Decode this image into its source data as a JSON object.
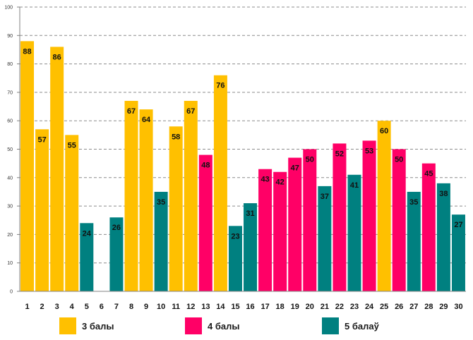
{
  "chart_data": {
    "type": "bar",
    "title": "",
    "xlabel": "",
    "ylabel": "",
    "ylim": [
      0,
      100
    ],
    "yticks": [
      0,
      10,
      20,
      30,
      40,
      50,
      60,
      70,
      80,
      90,
      100
    ],
    "grid": true,
    "legend_position": "bottom",
    "categories": [
      "1",
      "2",
      "3",
      "4",
      "5",
      "6",
      "7",
      "8",
      "9",
      "10",
      "11",
      "12",
      "13",
      "14",
      "15",
      "16",
      "17",
      "18",
      "19",
      "20",
      "21",
      "22",
      "23",
      "24",
      "25",
      "26",
      "27",
      "28",
      "29",
      "30"
    ],
    "values": [
      88,
      57,
      86,
      55,
      24,
      null,
      26,
      67,
      64,
      35,
      58,
      67,
      48,
      76,
      23,
      31,
      43,
      42,
      47,
      50,
      37,
      52,
      41,
      53,
      60,
      50,
      35,
      45,
      38,
      27
    ],
    "groups": [
      "3",
      "3",
      "3",
      "3",
      "5",
      null,
      "5",
      "3",
      "3",
      "5",
      "3",
      "3",
      "4",
      "3",
      "5",
      "5",
      "4",
      "4",
      "4",
      "4",
      "5",
      "4",
      "5",
      "4",
      "3",
      "4",
      "5",
      "4",
      "5",
      "5"
    ],
    "series": [
      {
        "key": "3",
        "name": "3 балы",
        "color": "#FFC000"
      },
      {
        "key": "4",
        "name": "4 балы",
        "color": "#FF0066"
      },
      {
        "key": "5",
        "name": "5 балаў",
        "color": "#008080"
      }
    ]
  }
}
